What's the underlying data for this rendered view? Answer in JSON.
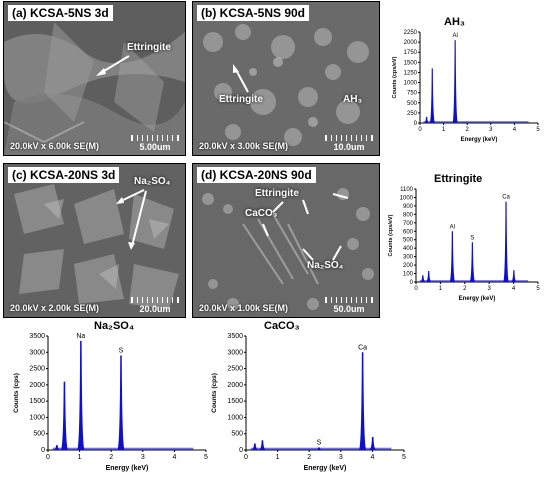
{
  "panels": {
    "a": {
      "label": "(a) KCSA-5NS 3d",
      "info": "20.0kV x 6.00k SE(M)",
      "scale": "5.00um",
      "ann": [
        "Ettringite"
      ]
    },
    "b": {
      "label": "(b) KCSA-5NS 90d",
      "info": "20.0kV x 3.00k SE(M)",
      "scale": "10.0um",
      "ann": [
        "Ettringite",
        "AH₃"
      ]
    },
    "c": {
      "label": "(c) KCSA-20NS 3d",
      "info": "20.0kV x 2.00k SE(M)",
      "scale": "20.0um",
      "ann": [
        "Na₂SO₄"
      ]
    },
    "d": {
      "label": "(d) KCSA-20NS 90d",
      "info": "20.0kV x 1.00k SE(M)",
      "scale": "50.0um",
      "ann": [
        "Ettringite",
        "CaCO₃",
        "Na₂SO₄"
      ]
    }
  },
  "spectra": [
    {
      "id": "ah3",
      "title": "AH₃",
      "ylabel": "Counts (cps/eV)",
      "xlabel": "Energy (keV)",
      "yticks": [
        0,
        250,
        500,
        750,
        1000,
        1250,
        1500,
        1750,
        2000,
        2250
      ],
      "xticks": [
        0,
        1,
        2,
        3,
        4,
        5
      ],
      "xlim": [
        0,
        5
      ],
      "ylim": [
        0,
        2250
      ],
      "peaks": [
        [
          0.28,
          150
        ],
        [
          0.52,
          1350
        ],
        [
          1.49,
          2050
        ]
      ],
      "peak_labels": [
        {
          "text": "Al",
          "x": 1.49,
          "y": 2050
        }
      ]
    },
    {
      "id": "ett",
      "title": "Ettringite",
      "ylabel": "Counts (cps/eV)",
      "xlabel": "Energy (keV)",
      "yticks": [
        0,
        100,
        200,
        300,
        400,
        500,
        600,
        700,
        800,
        900,
        1000,
        1100
      ],
      "xticks": [
        0,
        1,
        2,
        3,
        4,
        5
      ],
      "xlim": [
        0,
        5
      ],
      "ylim": [
        0,
        1100
      ],
      "peaks": [
        [
          0.28,
          80
        ],
        [
          0.52,
          130
        ],
        [
          1.49,
          600
        ],
        [
          2.31,
          470
        ],
        [
          3.69,
          950
        ],
        [
          4.01,
          140
        ]
      ],
      "peak_labels": [
        {
          "text": "Al",
          "x": 1.49,
          "y": 600
        },
        {
          "text": "S",
          "x": 2.31,
          "y": 470
        },
        {
          "text": "Ca",
          "x": 3.69,
          "y": 950
        }
      ]
    },
    {
      "id": "na2so4",
      "title": "Na₂SO₄",
      "ylabel": "Counts (cps)",
      "xlabel": "Energy (keV)",
      "yticks": [
        0,
        500,
        1000,
        1500,
        2000,
        2500,
        3000,
        3500
      ],
      "xticks": [
        0,
        1,
        2,
        3,
        4,
        5
      ],
      "xlim": [
        0,
        5
      ],
      "ylim": [
        0,
        3500
      ],
      "peaks": [
        [
          0.28,
          150
        ],
        [
          0.52,
          2100
        ],
        [
          1.04,
          3350
        ],
        [
          2.31,
          2900
        ]
      ],
      "peak_labels": [
        {
          "text": "Na",
          "x": 1.04,
          "y": 3350
        },
        {
          "text": "S",
          "x": 2.31,
          "y": 2900
        }
      ]
    },
    {
      "id": "caco3",
      "title": "CaCO₃",
      "ylabel": "Counts (cps)",
      "xlabel": "Energy (keV)",
      "yticks": [
        0,
        500,
        1000,
        1500,
        2000,
        2500,
        3000,
        3500
      ],
      "xticks": [
        0,
        1,
        2,
        3,
        4,
        5
      ],
      "xlim": [
        0,
        5
      ],
      "ylim": [
        0,
        3500
      ],
      "peaks": [
        [
          0.28,
          200
        ],
        [
          0.52,
          300
        ],
        [
          2.31,
          80
        ],
        [
          3.69,
          3000
        ],
        [
          4.01,
          400
        ]
      ],
      "peak_labels": [
        {
          "text": "Ca",
          "x": 3.69,
          "y": 3000
        },
        {
          "text": "S",
          "x": 2.31,
          "y": 80
        }
      ]
    }
  ],
  "colors": {
    "spectrum": "#1010c8",
    "annotation": "#ffffff"
  }
}
